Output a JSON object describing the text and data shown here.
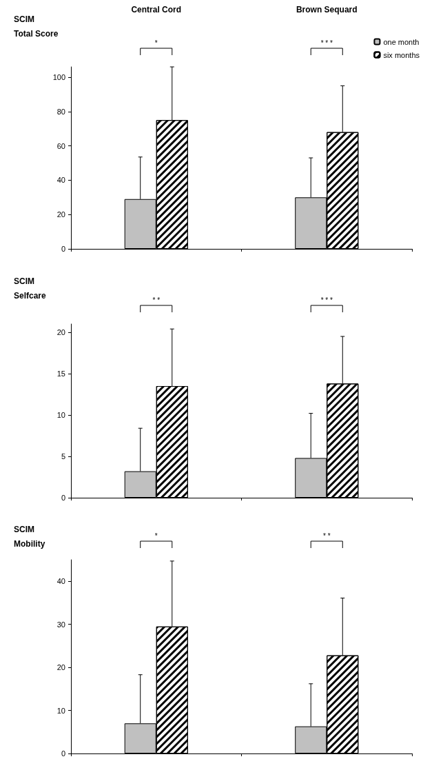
{
  "chart_data": [
    {
      "type": "bar",
      "title": "SCIM\nTotal Score",
      "categories": [
        "Central Cord",
        "Brown Sequard"
      ],
      "legend": "top right",
      "series": [
        {
          "name": "one month",
          "color": "#c0c0c0",
          "values": [
            29,
            30
          ],
          "errors": [
            [
              29,
              53.5
            ],
            [
              30,
              53
            ]
          ]
        },
        {
          "name": "six months",
          "color": "#ffffff",
          "values": [
            75,
            68
          ],
          "errors": [
            [
              75,
              106
            ],
            [
              68,
              95
            ]
          ]
        }
      ],
      "ylim": [
        0,
        106
      ],
      "yticks": [
        0,
        20,
        40,
        60,
        80,
        100
      ],
      "grid": false,
      "annotations": [
        "*",
        "* * *"
      ]
    },
    {
      "type": "bar",
      "title": "SCIM\nSelfcare",
      "categories": [
        null,
        null
      ],
      "tick_labels": "y",
      "series": [
        {
          "color": "#c0c0c0",
          "values": [
            3.2,
            4.8
          ],
          "errors": [
            [
              3.2,
              8.4
            ],
            [
              4.8,
              10.2
            ]
          ]
        },
        {
          "color": "#ffffff",
          "values": [
            13.5,
            13.8
          ],
          "errors": [
            [
              13.5,
              20.4
            ],
            [
              13.8,
              19.5
            ]
          ]
        }
      ],
      "ylim": [
        0,
        21
      ],
      "yticks": [
        0,
        5,
        10,
        15,
        20
      ],
      "grid": false,
      "annotations": [
        "* *",
        "* * *"
      ]
    },
    {
      "type": "bar",
      "title": "SCIM\nMobility",
      "categories": [
        null,
        null
      ],
      "tick_labels": "y",
      "series": [
        {
          "color": "#c0c0c0",
          "values": [
            7,
            6.3
          ],
          "errors": [
            [
              7,
              18.3
            ],
            [
              6.3,
              16.2
            ]
          ]
        },
        {
          "color": "#ffffff",
          "values": [
            29.5,
            22.8
          ],
          "errors": [
            [
              29.5,
              44.7
            ],
            [
              22.8,
              36.1
            ]
          ]
        }
      ],
      "ylim": [
        0,
        45
      ],
      "yticks": [
        0,
        10,
        20,
        30,
        40
      ],
      "grid": false,
      "annotations": [
        "*",
        "* *"
      ]
    }
  ]
}
